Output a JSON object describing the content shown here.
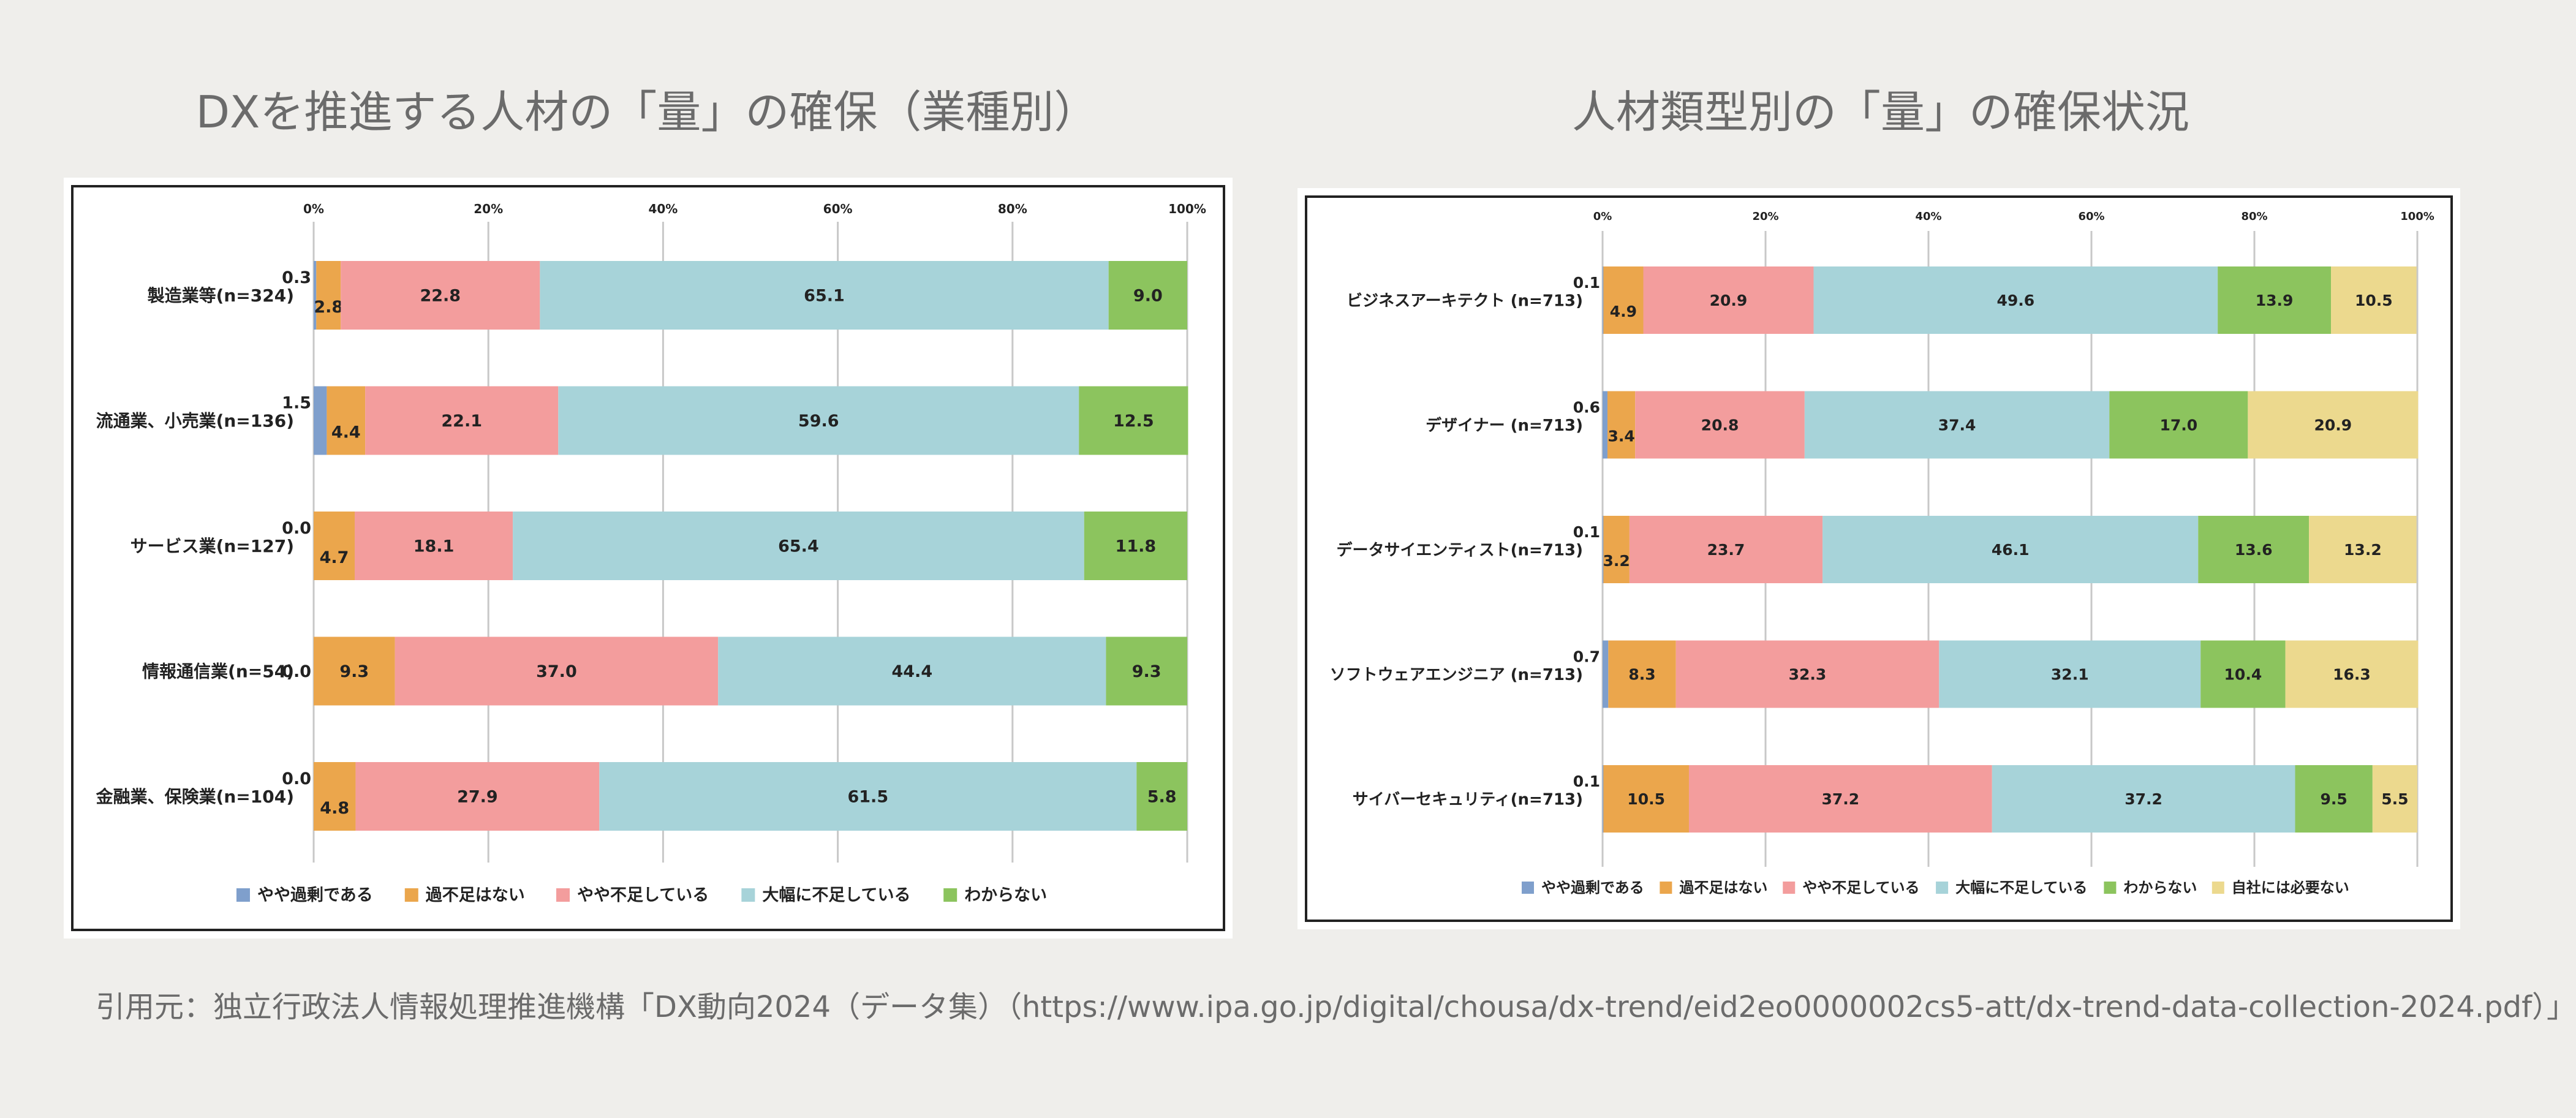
{
  "colors": {
    "やや過剰である": "#7f9fcc",
    "過不足はない": "#eba64c",
    "やや不足している": "#f39d9d",
    "大幅に不足している": "#a7d3d9",
    "わからない": "#8cc45e",
    "自社には必要ない": "#ecd98e"
  },
  "source_text": "引用元：独立行政法人情報処理推進機構「DX動向2024（データ集）（https://www.ipa.go.jp/digital/chousa/dx-trend/eid2eo0000002cs5-att/dx-trend-data-collection-2024.pdf）」",
  "chart_data": [
    {
      "type": "bar",
      "stacked": true,
      "orientation": "horizontal",
      "title": "DXを推進する人材の「量」の確保（業種別）",
      "xlim": [
        0,
        100
      ],
      "xticks": [
        "0%",
        "20%",
        "40%",
        "60%",
        "80%",
        "100%"
      ],
      "legend_position": "bottom",
      "grid": true,
      "categories": [
        "製造業等(n=324)",
        "流通業、小売業(n=136)",
        "サービス業(n=127)",
        "情報通信業(n=54)",
        "金融業、保険業(n=104)"
      ],
      "series": [
        {
          "name": "やや過剰である",
          "values": [
            0.3,
            1.5,
            0.0,
            0.0,
            0.0
          ]
        },
        {
          "name": "過不足はない",
          "values": [
            2.8,
            4.4,
            4.7,
            9.3,
            4.8
          ]
        },
        {
          "name": "やや不足している",
          "values": [
            22.8,
            22.1,
            18.1,
            37.0,
            27.9
          ]
        },
        {
          "name": "大幅に不足している",
          "values": [
            65.1,
            59.6,
            65.4,
            44.4,
            61.5
          ]
        },
        {
          "name": "わからない",
          "values": [
            9.0,
            12.5,
            11.8,
            9.3,
            5.8
          ]
        }
      ]
    },
    {
      "type": "bar",
      "stacked": true,
      "orientation": "horizontal",
      "title": "人材類型別の「量」の確保状況",
      "xlim": [
        0,
        100
      ],
      "xticks": [
        "0%",
        "20%",
        "40%",
        "60%",
        "80%",
        "100%"
      ],
      "legend_position": "bottom",
      "grid": true,
      "categories": [
        "ビジネスアーキテクト (n=713)",
        "デザイナー (n=713)",
        "データサイエンティスト(n=713)",
        "ソフトウェアエンジニア (n=713)",
        "サイバーセキュリティ(n=713)"
      ],
      "series": [
        {
          "name": "やや過剰である",
          "values": [
            0.1,
            0.6,
            0.1,
            0.7,
            0.1
          ]
        },
        {
          "name": "過不足はない",
          "values": [
            4.9,
            3.4,
            3.2,
            8.3,
            10.5
          ]
        },
        {
          "name": "やや不足している",
          "values": [
            20.9,
            20.8,
            23.7,
            32.3,
            37.2
          ]
        },
        {
          "name": "大幅に不足している",
          "values": [
            49.6,
            37.4,
            46.1,
            32.1,
            37.2
          ]
        },
        {
          "name": "わからない",
          "values": [
            13.9,
            17.0,
            13.6,
            10.4,
            9.5
          ]
        },
        {
          "name": "自社には必要ない",
          "values": [
            10.5,
            20.9,
            13.2,
            16.3,
            5.5
          ]
        }
      ]
    }
  ]
}
